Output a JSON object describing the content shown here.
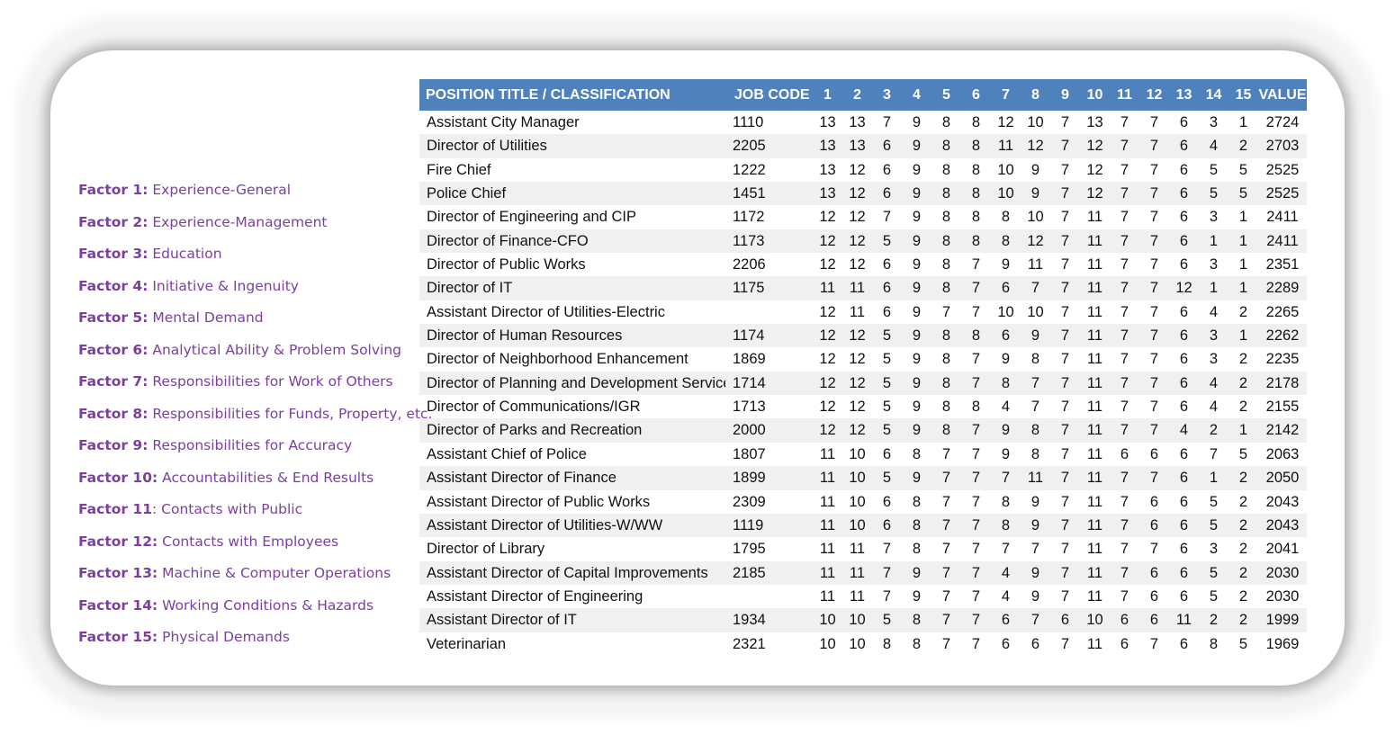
{
  "factors": [
    {
      "num": "Factor 1:",
      "name": " Experience-General"
    },
    {
      "num": "Factor 2:",
      "name": " Experience-Management"
    },
    {
      "num": "Factor 3:",
      "name": " Education"
    },
    {
      "num": "Factor 4:",
      "name": " Initiative & Ingenuity"
    },
    {
      "num": "Factor 5:",
      "name": " Mental Demand"
    },
    {
      "num": "Factor 6:",
      "name": " Analytical Ability & Problem Solving"
    },
    {
      "num": "Factor 7:",
      "name": " Responsibilities for Work of Others"
    },
    {
      "num": "Factor 8:",
      "name": " Responsibilities for Funds, Property, etc."
    },
    {
      "num": "Factor 9:",
      "name": " Responsibilities for Accuracy"
    },
    {
      "num": "Factor 10:",
      "name": " Accountabilities & End Results"
    },
    {
      "num": "Factor 11",
      "name": ": Contacts with Public"
    },
    {
      "num": "Factor 12:",
      "name": " Contacts with Employees"
    },
    {
      "num": "Factor 13:",
      "name": " Machine & Computer Operations"
    },
    {
      "num": "Factor 14:",
      "name": " Working Conditions & Hazards"
    },
    {
      "num": "Factor 15:",
      "name": " Physical Demands"
    }
  ],
  "table": {
    "header": {
      "title": "POSITION TITLE / CLASSIFICATION",
      "code": "JOB CODE",
      "factors": [
        "1",
        "2",
        "3",
        "4",
        "5",
        "6",
        "7",
        "8",
        "9",
        "10",
        "11",
        "12",
        "13",
        "14",
        "15"
      ],
      "value": "VALUE"
    },
    "rows": [
      {
        "title": "Assistant City Manager",
        "code": "1110",
        "f": [
          "13",
          "13",
          "7",
          "9",
          "8",
          "8",
          "12",
          "10",
          "7",
          "13",
          "7",
          "7",
          "6",
          "3",
          "1"
        ],
        "value": "2724"
      },
      {
        "title": "Director of Utilities",
        "code": "2205",
        "f": [
          "13",
          "13",
          "6",
          "9",
          "8",
          "8",
          "11",
          "12",
          "7",
          "12",
          "7",
          "7",
          "6",
          "4",
          "2"
        ],
        "value": "2703"
      },
      {
        "title": "Fire Chief",
        "code": "1222",
        "f": [
          "13",
          "12",
          "6",
          "9",
          "8",
          "8",
          "10",
          "9",
          "7",
          "12",
          "7",
          "7",
          "6",
          "5",
          "5"
        ],
        "value": "2525"
      },
      {
        "title": "Police Chief",
        "code": "1451",
        "f": [
          "13",
          "12",
          "6",
          "9",
          "8",
          "8",
          "10",
          "9",
          "7",
          "12",
          "7",
          "7",
          "6",
          "5",
          "5"
        ],
        "value": "2525"
      },
      {
        "title": "Director of Engineering and CIP",
        "code": "1172",
        "f": [
          "12",
          "12",
          "7",
          "9",
          "8",
          "8",
          "8",
          "10",
          "7",
          "11",
          "7",
          "7",
          "6",
          "3",
          "1"
        ],
        "value": "2411"
      },
      {
        "title": "Director of Finance-CFO",
        "code": "1173",
        "f": [
          "12",
          "12",
          "5",
          "9",
          "8",
          "8",
          "8",
          "12",
          "7",
          "11",
          "7",
          "7",
          "6",
          "1",
          "1"
        ],
        "value": "2411"
      },
      {
        "title": "Director of Public Works",
        "code": "2206",
        "f": [
          "12",
          "12",
          "6",
          "9",
          "8",
          "7",
          "9",
          "11",
          "7",
          "11",
          "7",
          "7",
          "6",
          "3",
          "1"
        ],
        "value": "2351"
      },
      {
        "title": "Director of IT",
        "code": "1175",
        "f": [
          "11",
          "11",
          "6",
          "9",
          "8",
          "7",
          "6",
          "7",
          "7",
          "11",
          "7",
          "7",
          "12",
          "1",
          "1"
        ],
        "value": "2289"
      },
      {
        "title": "Assistant Director of Utilities-Electric",
        "code": "",
        "f": [
          "12",
          "11",
          "6",
          "9",
          "7",
          "7",
          "10",
          "10",
          "7",
          "11",
          "7",
          "7",
          "6",
          "4",
          "2"
        ],
        "value": "2265"
      },
      {
        "title": "Director of Human Resources",
        "code": "1174",
        "f": [
          "12",
          "12",
          "5",
          "9",
          "8",
          "8",
          "6",
          "9",
          "7",
          "11",
          "7",
          "7",
          "6",
          "3",
          "1"
        ],
        "value": "2262"
      },
      {
        "title": "Director of Neighborhood Enhancement",
        "code": "1869",
        "f": [
          "12",
          "12",
          "5",
          "9",
          "8",
          "7",
          "9",
          "8",
          "7",
          "11",
          "7",
          "7",
          "6",
          "3",
          "2"
        ],
        "value": "2235"
      },
      {
        "title": "Director of Planning and Development Services",
        "code": "1714",
        "f": [
          "12",
          "12",
          "5",
          "9",
          "8",
          "7",
          "8",
          "7",
          "7",
          "11",
          "7",
          "7",
          "6",
          "4",
          "2"
        ],
        "value": "2178"
      },
      {
        "title": "Director of Communications/IGR",
        "code": "1713",
        "f": [
          "12",
          "12",
          "5",
          "9",
          "8",
          "8",
          "4",
          "7",
          "7",
          "11",
          "7",
          "7",
          "6",
          "4",
          "2"
        ],
        "value": "2155"
      },
      {
        "title": "Director of Parks and Recreation",
        "code": "2000",
        "f": [
          "12",
          "12",
          "5",
          "9",
          "8",
          "7",
          "9",
          "8",
          "7",
          "11",
          "7",
          "7",
          "4",
          "2",
          "1"
        ],
        "value": "2142"
      },
      {
        "title": "Assistant Chief of Police",
        "code": "1807",
        "f": [
          "11",
          "10",
          "6",
          "8",
          "7",
          "7",
          "9",
          "8",
          "7",
          "11",
          "6",
          "6",
          "6",
          "7",
          "5"
        ],
        "value": "2063"
      },
      {
        "title": "Assistant Director of Finance",
        "code": "1899",
        "f": [
          "11",
          "10",
          "5",
          "9",
          "7",
          "7",
          "7",
          "11",
          "7",
          "11",
          "7",
          "7",
          "6",
          "1",
          "2"
        ],
        "value": "2050"
      },
      {
        "title": "Assistant Director of Public Works",
        "code": "2309",
        "f": [
          "11",
          "10",
          "6",
          "8",
          "7",
          "7",
          "8",
          "9",
          "7",
          "11",
          "7",
          "6",
          "6",
          "5",
          "2"
        ],
        "value": "2043"
      },
      {
        "title": "Assistant Director of Utilities-W/WW",
        "code": "1119",
        "f": [
          "11",
          "10",
          "6",
          "8",
          "7",
          "7",
          "8",
          "9",
          "7",
          "11",
          "7",
          "6",
          "6",
          "5",
          "2"
        ],
        "value": "2043"
      },
      {
        "title": "Director of Library",
        "code": "1795",
        "f": [
          "11",
          "11",
          "7",
          "8",
          "7",
          "7",
          "7",
          "7",
          "7",
          "11",
          "7",
          "7",
          "6",
          "3",
          "2"
        ],
        "value": "2041"
      },
      {
        "title": "Assistant Director of Capital Improvements",
        "code": "2185",
        "f": [
          "11",
          "11",
          "7",
          "9",
          "7",
          "7",
          "4",
          "9",
          "7",
          "11",
          "7",
          "6",
          "6",
          "5",
          "2"
        ],
        "value": "2030"
      },
      {
        "title": "Assistant Director of Engineering",
        "code": "",
        "f": [
          "11",
          "11",
          "7",
          "9",
          "7",
          "7",
          "4",
          "9",
          "7",
          "11",
          "7",
          "6",
          "6",
          "5",
          "2"
        ],
        "value": "2030"
      },
      {
        "title": "Assistant Director of IT",
        "code": "1934",
        "f": [
          "10",
          "10",
          "5",
          "8",
          "7",
          "7",
          "6",
          "7",
          "6",
          "10",
          "6",
          "6",
          "11",
          "2",
          "2"
        ],
        "value": "1999"
      },
      {
        "title": "Veterinarian",
        "code": "2321",
        "f": [
          "10",
          "10",
          "8",
          "8",
          "7",
          "7",
          "6",
          "6",
          "7",
          "11",
          "6",
          "7",
          "6",
          "8",
          "5"
        ],
        "value": "1969"
      }
    ]
  },
  "colors": {
    "header_bg": "#4f81bd",
    "legend_text": "#7b3fa0",
    "alt_row": "#f0f0f0"
  }
}
